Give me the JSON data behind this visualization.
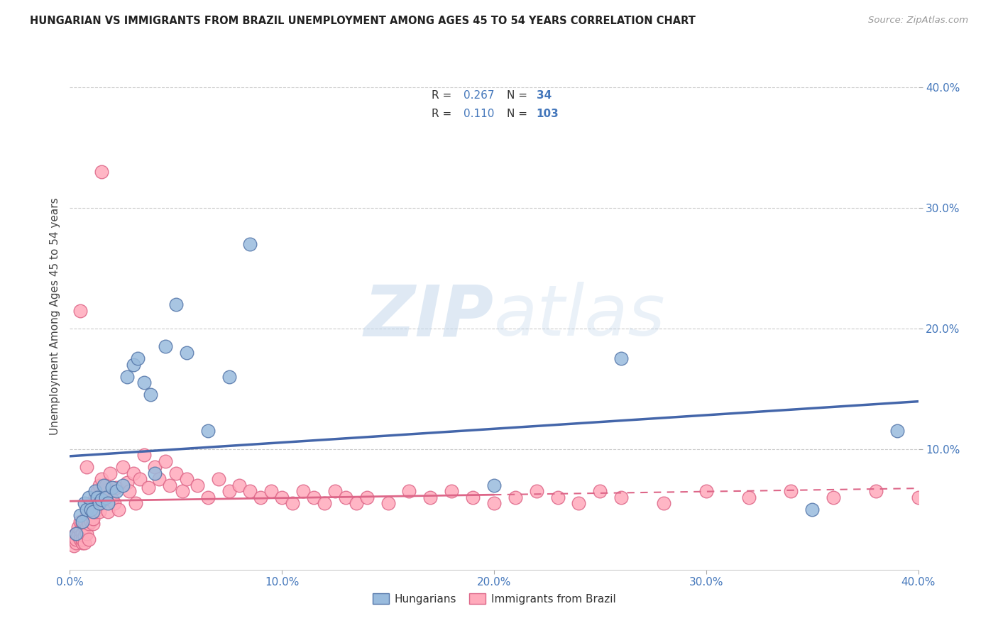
{
  "title": "HUNGARIAN VS IMMIGRANTS FROM BRAZIL UNEMPLOYMENT AMONG AGES 45 TO 54 YEARS CORRELATION CHART",
  "source": "Source: ZipAtlas.com",
  "ylabel": "Unemployment Among Ages 45 to 54 years",
  "xlim": [
    0.0,
    0.4
  ],
  "ylim": [
    0.0,
    0.42
  ],
  "xticks": [
    0.0,
    0.1,
    0.2,
    0.3,
    0.4
  ],
  "yticks": [
    0.1,
    0.2,
    0.3,
    0.4
  ],
  "xticklabels": [
    "0.0%",
    "10.0%",
    "20.0%",
    "30.0%",
    "40.0%"
  ],
  "yticklabels": [
    "10.0%",
    "20.0%",
    "30.0%",
    "40.0%"
  ],
  "grid_color": "#cccccc",
  "watermark_zip": "ZIP",
  "watermark_atlas": "atlas",
  "blue_color": "#99BBDD",
  "pink_color": "#FFAABB",
  "blue_edge_color": "#5577AA",
  "pink_edge_color": "#DD6688",
  "blue_line_color": "#4466AA",
  "pink_line_color": "#DD6688",
  "tick_color": "#4477BB",
  "background_color": "#ffffff",
  "hungarian_x": [
    0.003,
    0.005,
    0.006,
    0.007,
    0.008,
    0.009,
    0.01,
    0.011,
    0.012,
    0.013,
    0.014,
    0.015,
    0.016,
    0.017,
    0.018,
    0.02,
    0.022,
    0.025,
    0.027,
    0.03,
    0.032,
    0.035,
    0.038,
    0.04,
    0.045,
    0.05,
    0.055,
    0.065,
    0.075,
    0.085,
    0.2,
    0.26,
    0.35,
    0.39
  ],
  "hungarian_y": [
    0.03,
    0.045,
    0.04,
    0.055,
    0.05,
    0.06,
    0.05,
    0.048,
    0.065,
    0.06,
    0.055,
    0.058,
    0.07,
    0.06,
    0.055,
    0.068,
    0.065,
    0.07,
    0.16,
    0.17,
    0.175,
    0.155,
    0.145,
    0.08,
    0.185,
    0.22,
    0.18,
    0.115,
    0.16,
    0.27,
    0.07,
    0.175,
    0.05,
    0.115
  ],
  "brazil_x": [
    0.001,
    0.002,
    0.002,
    0.003,
    0.003,
    0.003,
    0.004,
    0.004,
    0.004,
    0.005,
    0.005,
    0.005,
    0.005,
    0.006,
    0.006,
    0.006,
    0.006,
    0.007,
    0.007,
    0.007,
    0.007,
    0.008,
    0.008,
    0.008,
    0.009,
    0.009,
    0.009,
    0.01,
    0.01,
    0.01,
    0.011,
    0.011,
    0.012,
    0.012,
    0.013,
    0.013,
    0.014,
    0.014,
    0.015,
    0.015,
    0.016,
    0.016,
    0.017,
    0.018,
    0.019,
    0.02,
    0.021,
    0.022,
    0.023,
    0.025,
    0.027,
    0.028,
    0.03,
    0.031,
    0.033,
    0.035,
    0.037,
    0.04,
    0.042,
    0.045,
    0.047,
    0.05,
    0.053,
    0.055,
    0.06,
    0.065,
    0.07,
    0.075,
    0.08,
    0.085,
    0.09,
    0.095,
    0.1,
    0.105,
    0.11,
    0.115,
    0.12,
    0.125,
    0.13,
    0.135,
    0.14,
    0.15,
    0.16,
    0.17,
    0.18,
    0.19,
    0.2,
    0.21,
    0.22,
    0.23,
    0.24,
    0.25,
    0.26,
    0.28,
    0.3,
    0.32,
    0.34,
    0.36,
    0.38,
    0.4,
    0.005,
    0.008,
    0.015
  ],
  "brazil_y": [
    0.025,
    0.02,
    0.028,
    0.022,
    0.03,
    0.025,
    0.03,
    0.028,
    0.035,
    0.032,
    0.04,
    0.028,
    0.025,
    0.038,
    0.03,
    0.022,
    0.025,
    0.035,
    0.028,
    0.04,
    0.022,
    0.045,
    0.035,
    0.03,
    0.042,
    0.038,
    0.025,
    0.045,
    0.04,
    0.055,
    0.038,
    0.042,
    0.06,
    0.048,
    0.055,
    0.065,
    0.048,
    0.07,
    0.055,
    0.075,
    0.06,
    0.065,
    0.07,
    0.048,
    0.08,
    0.058,
    0.055,
    0.068,
    0.05,
    0.085,
    0.072,
    0.065,
    0.08,
    0.055,
    0.075,
    0.095,
    0.068,
    0.085,
    0.075,
    0.09,
    0.07,
    0.08,
    0.065,
    0.075,
    0.07,
    0.06,
    0.075,
    0.065,
    0.07,
    0.065,
    0.06,
    0.065,
    0.06,
    0.055,
    0.065,
    0.06,
    0.055,
    0.065,
    0.06,
    0.055,
    0.06,
    0.055,
    0.065,
    0.06,
    0.065,
    0.06,
    0.055,
    0.06,
    0.065,
    0.06,
    0.055,
    0.065,
    0.06,
    0.055,
    0.065,
    0.06,
    0.065,
    0.06,
    0.065,
    0.06,
    0.215,
    0.085,
    0.33
  ]
}
